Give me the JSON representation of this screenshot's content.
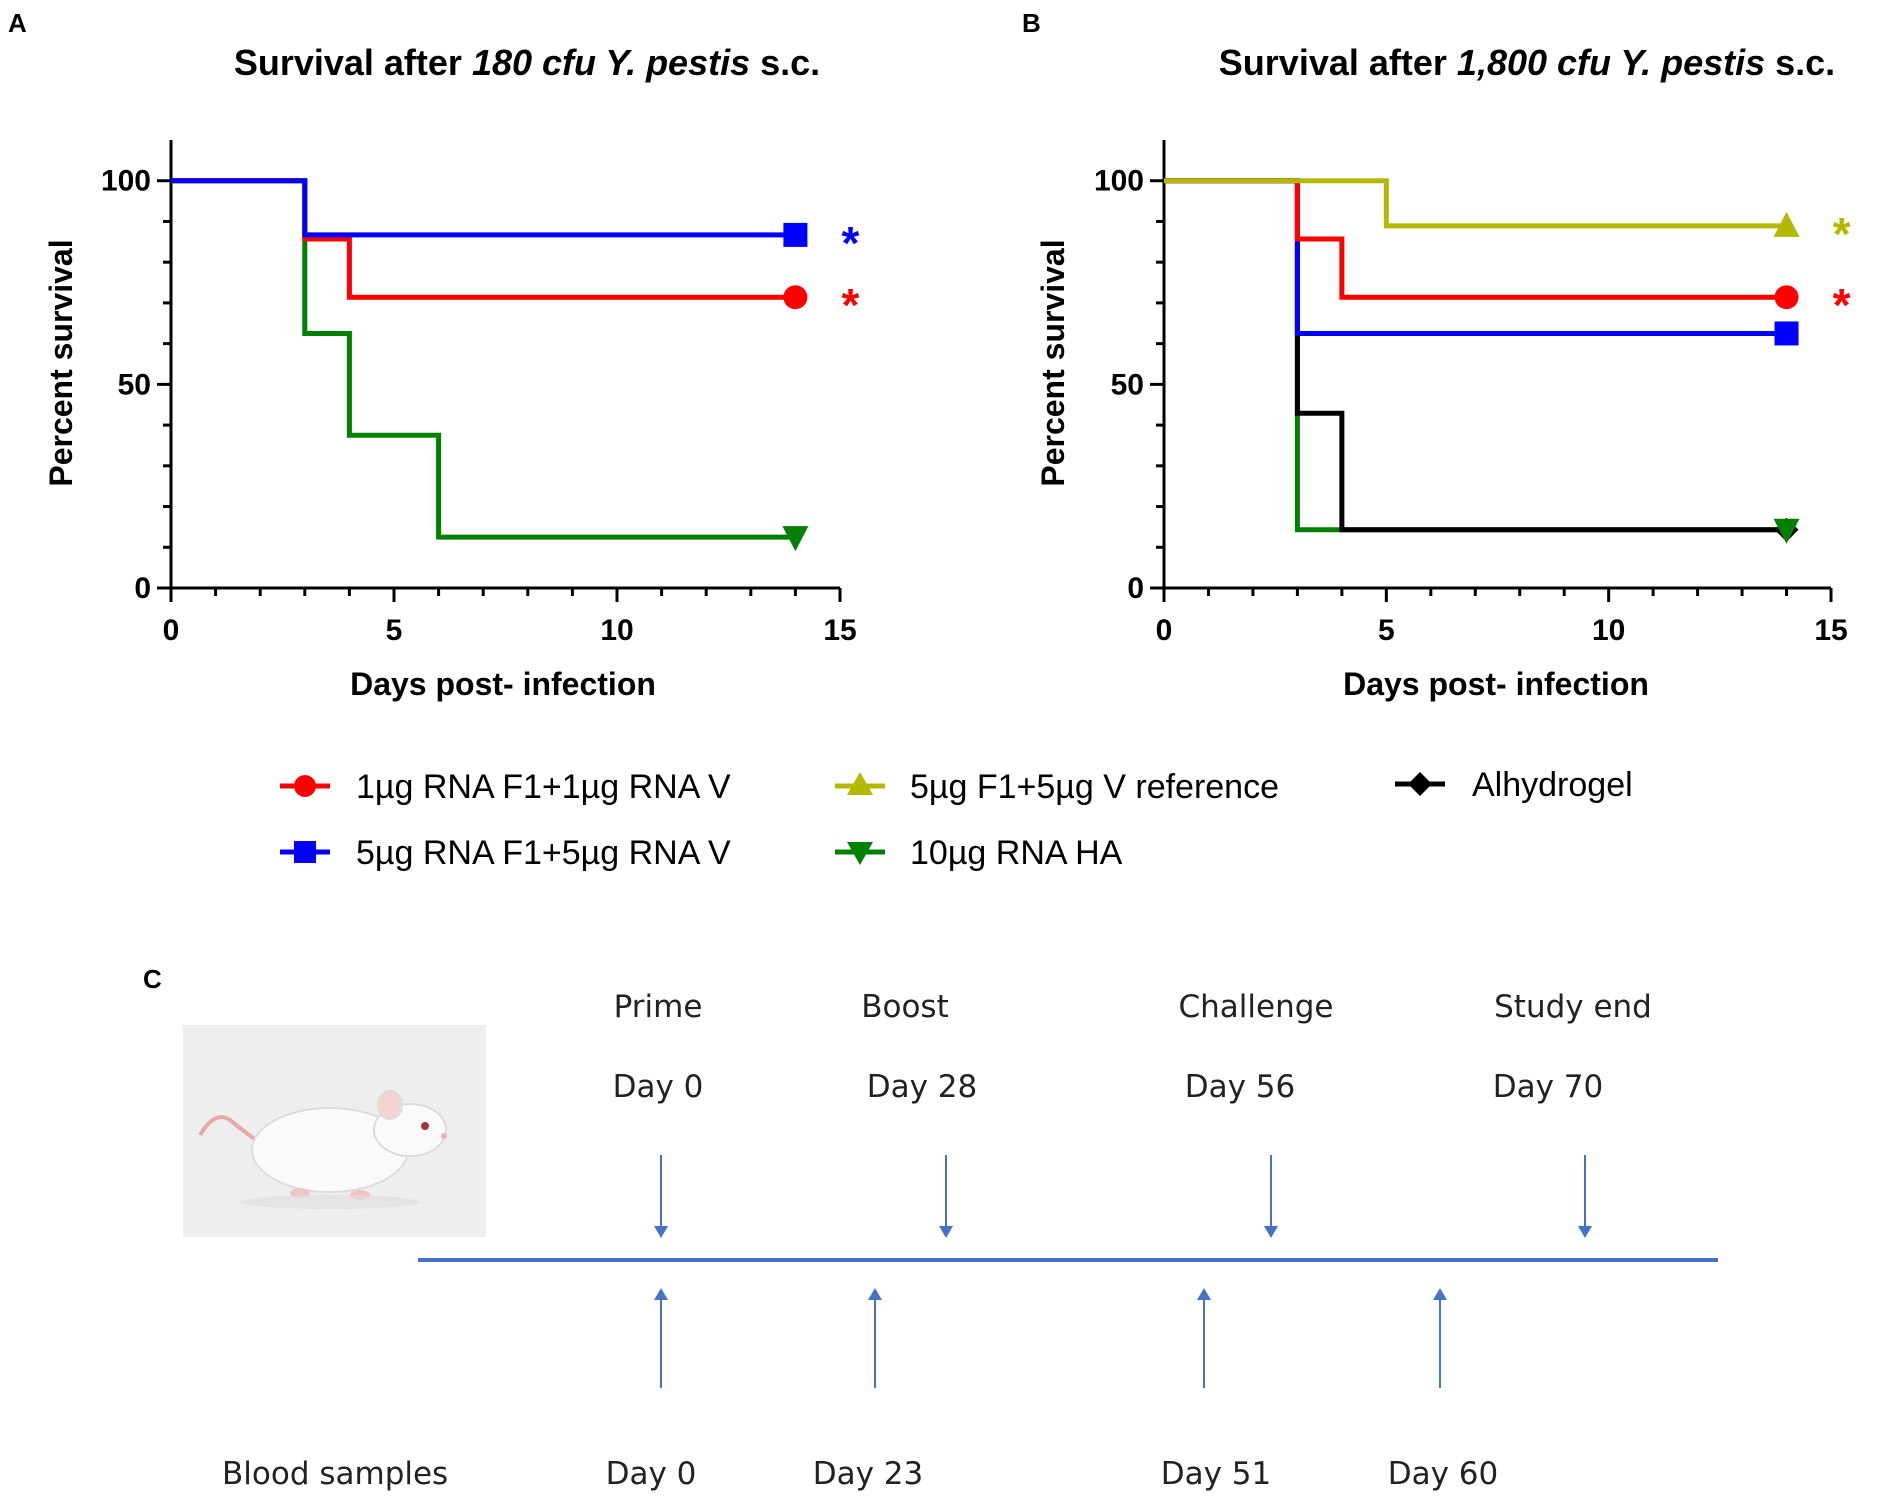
{
  "panel_labels": {
    "a": "A",
    "b": "B",
    "c": "C"
  },
  "chart_data": [
    {
      "type": "line",
      "step": true,
      "title": "Survival after ",
      "title_italic": "180 cfu Y. pestis",
      "title_suffix": " s.c.",
      "xlabel": "Days post- infection",
      "ylabel": "Percent survival",
      "xlim": [
        0,
        15
      ],
      "ylim": [
        0,
        110
      ],
      "xticks": [
        "0",
        "5",
        "10",
        "15"
      ],
      "yticks": [
        "0",
        "50",
        "100"
      ],
      "series": [
        {
          "name": "5µg RNA F1+5µg RNA V",
          "color": "#0000ff",
          "marker": "square",
          "x": [
            0,
            3,
            14
          ],
          "y": [
            100,
            86.7,
            86.7
          ],
          "significant": true,
          "star": "*"
        },
        {
          "name": "1µg RNA F1+1µg RNA V",
          "color": "#ff0000",
          "marker": "circle",
          "x": [
            0,
            3,
            4,
            14
          ],
          "y": [
            100,
            85.7,
            71.4,
            71.4
          ],
          "significant": true,
          "star": "*"
        },
        {
          "name": "10µg RNA HA",
          "color": "#008000",
          "marker": "triangle-down",
          "x": [
            0,
            3,
            4,
            6,
            14
          ],
          "y": [
            100,
            62.5,
            37.5,
            12.5,
            12.5
          ],
          "significant": false,
          "star": ""
        }
      ]
    },
    {
      "type": "line",
      "step": true,
      "title": "Survival after ",
      "title_italic": "1,800 cfu Y. pestis",
      "title_suffix": " s.c.",
      "xlabel": "Days post- infection",
      "ylabel": "Percent survival",
      "xlim": [
        0,
        15
      ],
      "ylim": [
        0,
        110
      ],
      "xticks": [
        "0",
        "5",
        "10",
        "15"
      ],
      "yticks": [
        "0",
        "50",
        "100"
      ],
      "series": [
        {
          "name": "5µg F1+5µg V reference",
          "color": "#b5b800",
          "marker": "triangle-up",
          "x": [
            0,
            5,
            14
          ],
          "y": [
            100,
            88.9,
            88.9
          ],
          "significant": true,
          "star": "*"
        },
        {
          "name": "1µg RNA F1+1µg RNA V",
          "color": "#ff0000",
          "marker": "circle",
          "x": [
            0,
            3,
            4,
            14
          ],
          "y": [
            100,
            85.7,
            71.4,
            71.4
          ],
          "significant": true,
          "star": "*"
        },
        {
          "name": "5µg RNA F1+5µg RNA V",
          "color": "#0000ff",
          "marker": "square",
          "x": [
            0,
            3,
            14
          ],
          "y": [
            100,
            62.5,
            62.5
          ],
          "significant": false,
          "star": ""
        },
        {
          "name": "Alhydrogel",
          "color": "#000000",
          "marker": "diamond",
          "x": [
            0,
            3,
            4,
            14
          ],
          "y": [
            100,
            42.9,
            14.3,
            14.3
          ],
          "significant": false,
          "star": ""
        },
        {
          "name": "10µg RNA HA",
          "color": "#008000",
          "marker": "triangle-down",
          "x": [
            0,
            3,
            14
          ],
          "y": [
            100,
            14.3,
            14.3
          ],
          "significant": false,
          "star": ""
        }
      ]
    }
  ],
  "legend": [
    {
      "label": "1µg RNA F1+1µg RNA V",
      "color": "#ff0000",
      "marker": "circle"
    },
    {
      "label": "5µg RNA F1+5µg RNA V",
      "color": "#0000ff",
      "marker": "square"
    },
    {
      "label": "5µg F1+5µg V reference",
      "color": "#b5b800",
      "marker": "triangle-up"
    },
    {
      "label": "10µg RNA HA",
      "color": "#008000",
      "marker": "triangle-down"
    },
    {
      "label": "Alhydrogel",
      "color": "#000000",
      "marker": "diamond"
    }
  ],
  "timeline": {
    "line_color": "#4472c4",
    "events_top": [
      {
        "name": "Prime",
        "day": "Day 0"
      },
      {
        "name": "Boost",
        "day": "Day 28"
      },
      {
        "name": "Challenge",
        "day": "Day 56"
      },
      {
        "name": "Study end",
        "day": "Day 70"
      }
    ],
    "blood_label": "Blood samples",
    "blood_days": [
      "Day 0",
      "Day 23",
      "Day 51",
      "Day 60"
    ]
  }
}
